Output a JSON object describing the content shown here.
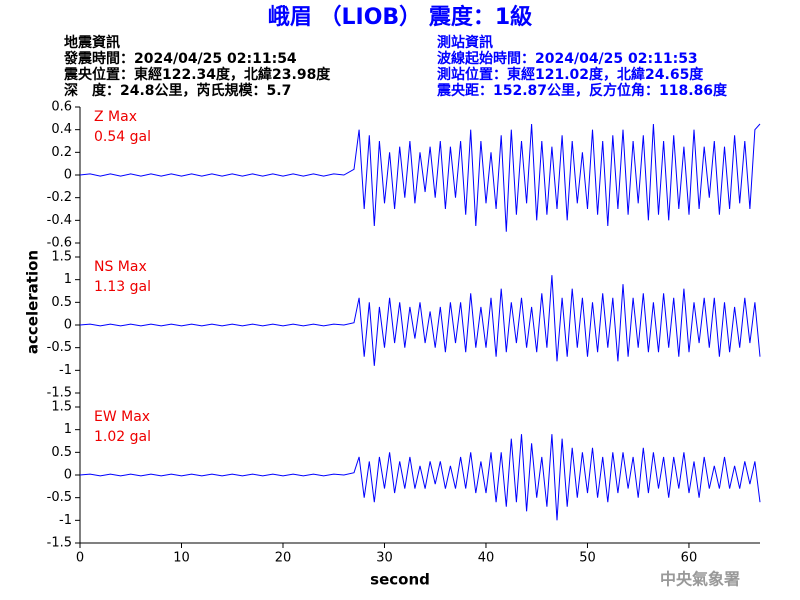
{
  "header": {
    "title": "峨眉 （LIOB） 震度：1級",
    "left": [
      "地震資訊",
      "發震時間：2024/04/25 02:11:54",
      "震央位置：東經122.34度，北緯23.98度",
      "深　度：24.8公里，芮氏規模：5.7"
    ],
    "right": [
      "測站資訊",
      "波線起始時間：2024/04/25 02:11:53",
      "測站位置：東經121.02度，北緯24.65度",
      "震央距：152.87公里，反方位角：118.86度"
    ],
    "footer": "中央氣象署"
  },
  "chart_data": {
    "type": "line",
    "xlabel": "second",
    "ylabel": "acceleration",
    "xlim": [
      0,
      67
    ],
    "xticks": [
      0,
      10,
      20,
      30,
      40,
      50,
      60
    ],
    "x": [
      0,
      1,
      2,
      3,
      4,
      5,
      6,
      7,
      8,
      9,
      10,
      11,
      12,
      13,
      14,
      15,
      16,
      17,
      18,
      19,
      20,
      21,
      22,
      23,
      24,
      25,
      26,
      27,
      27.5,
      28,
      28.5,
      29,
      29.5,
      30,
      30.5,
      31,
      31.5,
      32,
      32.5,
      33,
      33.5,
      34,
      34.5,
      35,
      35.5,
      36,
      36.5,
      37,
      37.5,
      38,
      38.5,
      39,
      39.5,
      40,
      40.5,
      41,
      41.5,
      42,
      42.5,
      43,
      43.5,
      44,
      44.5,
      45,
      45.5,
      46,
      46.5,
      47,
      47.5,
      48,
      48.5,
      49,
      49.5,
      50,
      50.5,
      51,
      51.5,
      52,
      52.5,
      53,
      53.5,
      54,
      54.5,
      55,
      55.5,
      56,
      56.5,
      57,
      57.5,
      58,
      58.5,
      59,
      59.5,
      60,
      60.5,
      61,
      61.5,
      62,
      62.5,
      63,
      63.5,
      64,
      64.5,
      65,
      65.5,
      66,
      66.5,
      67
    ],
    "series": [
      {
        "name": "Z Max",
        "annotation": "0.54 gal",
        "color": "#0000ff",
        "ylim": [
          -0.6,
          0.6
        ],
        "yticks": [
          -0.6,
          -0.4,
          -0.2,
          0,
          0.2,
          0.4,
          0.6
        ],
        "values": [
          0,
          0.01,
          -0.01,
          0.01,
          -0.01,
          0.01,
          -0.01,
          0.01,
          -0.01,
          0.01,
          -0.01,
          0.01,
          -0.01,
          0.01,
          -0.01,
          0.01,
          -0.01,
          0.01,
          -0.01,
          0.01,
          -0.01,
          0.01,
          -0.01,
          0.01,
          -0.01,
          0.01,
          0,
          0.05,
          0.4,
          -0.3,
          0.35,
          -0.45,
          0.3,
          -0.25,
          0.2,
          -0.3,
          0.25,
          -0.2,
          0.3,
          -0.25,
          0.2,
          -0.15,
          0.25,
          -0.2,
          0.3,
          -0.3,
          0.25,
          -0.2,
          0.3,
          -0.35,
          0.4,
          -0.45,
          0.3,
          -0.25,
          0.2,
          -0.3,
          0.35,
          -0.5,
          0.4,
          -0.35,
          0.3,
          -0.25,
          0.45,
          -0.4,
          0.3,
          -0.35,
          0.25,
          -0.3,
          0.35,
          -0.4,
          0.3,
          -0.25,
          0.2,
          -0.3,
          0.4,
          -0.35,
          0.3,
          -0.45,
          0.35,
          -0.3,
          0.4,
          -0.35,
          0.3,
          -0.25,
          0.35,
          -0.4,
          0.45,
          -0.35,
          0.3,
          -0.4,
          0.35,
          -0.3,
          0.25,
          -0.35,
          0.4,
          -0.3,
          0.25,
          -0.2,
          0.3,
          -0.35,
          0.25,
          -0.3,
          0.35,
          -0.25,
          0.3,
          -0.3,
          0.4,
          0.45
        ]
      },
      {
        "name": "NS Max",
        "annotation": "1.13 gal",
        "color": "#0000ff",
        "ylim": [
          -1.5,
          1.5
        ],
        "yticks": [
          -1.5,
          -1,
          -0.5,
          0,
          0.5,
          1,
          1.5
        ],
        "values": [
          0,
          0.02,
          -0.02,
          0.02,
          -0.02,
          0.02,
          -0.02,
          0.02,
          -0.02,
          0.02,
          -0.02,
          0.02,
          -0.02,
          0.02,
          -0.02,
          0.02,
          -0.02,
          0.02,
          -0.02,
          0.02,
          -0.02,
          0.02,
          -0.02,
          0.02,
          -0.02,
          0.02,
          0,
          0.05,
          0.6,
          -0.7,
          0.5,
          -0.9,
          0.4,
          -0.5,
          0.6,
          -0.4,
          0.5,
          -0.5,
          0.4,
          -0.3,
          0.5,
          -0.4,
          0.3,
          -0.5,
          0.4,
          -0.6,
          0.5,
          -0.4,
          0.5,
          -0.6,
          0.7,
          -0.5,
          0.4,
          -0.5,
          0.6,
          -0.7,
          0.8,
          -0.6,
          0.5,
          -0.4,
          0.6,
          -0.5,
          0.4,
          -0.6,
          0.7,
          -0.5,
          1.1,
          -0.8,
          0.6,
          -0.7,
          0.8,
          -0.5,
          0.6,
          -0.7,
          0.5,
          -0.6,
          0.7,
          -0.5,
          0.6,
          -0.8,
          0.9,
          -0.7,
          0.6,
          -0.5,
          0.7,
          -0.6,
          0.5,
          -0.6,
          0.7,
          -0.5,
          0.6,
          -0.7,
          0.8,
          -0.6,
          0.5,
          -0.4,
          0.6,
          -0.5,
          0.6,
          -0.7,
          0.5,
          -0.6,
          0.4,
          -0.5,
          0.6,
          -0.4,
          0.5,
          -0.7
        ]
      },
      {
        "name": "EW Max",
        "annotation": "1.02 gal",
        "color": "#0000ff",
        "ylim": [
          -1.5,
          1.5
        ],
        "yticks": [
          -1.5,
          -1,
          -0.5,
          0,
          0.5,
          1,
          1.5
        ],
        "values": [
          0,
          0.02,
          -0.02,
          0.02,
          -0.02,
          0.02,
          -0.02,
          0.02,
          -0.02,
          0.02,
          -0.02,
          0.02,
          -0.02,
          0.02,
          -0.02,
          0.02,
          -0.02,
          0.02,
          -0.02,
          0.02,
          -0.02,
          0.02,
          -0.02,
          0.02,
          -0.02,
          0.02,
          0,
          0.05,
          0.4,
          -0.5,
          0.3,
          -0.6,
          0.4,
          -0.3,
          0.5,
          -0.4,
          0.3,
          -0.3,
          0.4,
          -0.3,
          0.2,
          -0.3,
          0.3,
          -0.2,
          0.3,
          -0.3,
          0.2,
          -0.3,
          0.4,
          -0.3,
          0.5,
          -0.4,
          0.3,
          -0.4,
          0.5,
          -0.6,
          0.5,
          -0.7,
          0.8,
          -0.6,
          0.9,
          -0.8,
          0.7,
          -0.5,
          0.4,
          -0.7,
          0.9,
          -1.0,
          0.8,
          -0.7,
          0.6,
          -0.5,
          0.5,
          -0.4,
          0.6,
          -0.5,
          0.4,
          -0.6,
          0.5,
          -0.4,
          0.5,
          -0.3,
          0.4,
          -0.5,
          0.6,
          -0.4,
          0.5,
          -0.3,
          0.4,
          -0.5,
          0.4,
          -0.3,
          0.5,
          -0.4,
          0.3,
          -0.5,
          0.4,
          -0.3,
          0.2,
          -0.3,
          0.4,
          -0.3,
          0.2,
          -0.3,
          0.3,
          -0.2,
          0.3,
          -0.6
        ]
      }
    ]
  }
}
